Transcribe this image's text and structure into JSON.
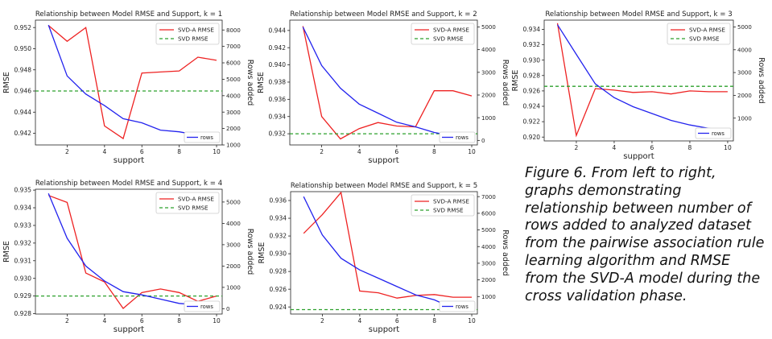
{
  "caption": "Figure 6. From left to right, graphs demonstrating relationship between number of rows added to analyzed dataset from the pairwise association rule learning algorithm and RMSE from the SVD-A model during the cross validation phase.",
  "colors": {
    "svd_a": "#ee2222",
    "svd": "#2ca02c",
    "rows": "#2222ee"
  },
  "chart_data": [
    {
      "type": "line",
      "title": "Relationship between Model RMSE and Support, k = 1",
      "xlabel": "support",
      "ylabel": "RMSE",
      "y2label": "Rows added",
      "xlim": [
        0.3,
        10.3
      ],
      "ylim": [
        0.9409,
        0.9527
      ],
      "y2lim": [
        1000,
        8600
      ],
      "xticks": [
        2,
        4,
        6,
        8,
        10
      ],
      "yticks": [
        0.942,
        0.944,
        0.946,
        0.948,
        0.95,
        0.952
      ],
      "y2ticks": [
        1000,
        2000,
        3000,
        4000,
        5000,
        6000,
        7000,
        8000
      ],
      "ydecimals": 3,
      "x": [
        1,
        2,
        3,
        4,
        5,
        6,
        7,
        8,
        9,
        10
      ],
      "series": [
        {
          "name": "SVD-A RMSE",
          "axis": "left",
          "style": "solid",
          "values": [
            0.9522,
            0.9507,
            0.952,
            0.9427,
            0.9415,
            0.9477,
            0.9478,
            0.9479,
            0.9492,
            0.9489
          ]
        },
        {
          "name": "SVD RMSE",
          "axis": "left",
          "style": "dashed",
          "values": [
            0.946,
            0.946,
            0.946,
            0.946,
            0.946,
            0.946,
            0.946,
            0.946,
            0.946,
            0.946
          ]
        },
        {
          "name": "rows",
          "axis": "right",
          "style": "solid",
          "values": [
            8300,
            5200,
            4100,
            3400,
            2600,
            2350,
            1900,
            1800,
            1600,
            1400
          ]
        }
      ],
      "legend_position": "top-right",
      "rows_legend_position": "bottom-right"
    },
    {
      "type": "line",
      "title": "Relationship between Model RMSE and Support, k = 2",
      "xlabel": "support",
      "ylabel": "RMSE",
      "y2label": "Rows added",
      "xlim": [
        0.3,
        10.3
      ],
      "ylim": [
        0.9307,
        0.9452
      ],
      "y2lim": [
        -200,
        5300
      ],
      "xticks": [
        2,
        4,
        6,
        8,
        10
      ],
      "yticks": [
        0.932,
        0.934,
        0.936,
        0.938,
        0.94,
        0.942,
        0.944
      ],
      "y2ticks": [
        0,
        1000,
        2000,
        3000,
        4000,
        5000
      ],
      "ydecimals": 3,
      "x": [
        1,
        2,
        3,
        4,
        5,
        6,
        7,
        8,
        9,
        10
      ],
      "series": [
        {
          "name": "SVD-A RMSE",
          "axis": "left",
          "style": "solid",
          "values": [
            0.9445,
            0.934,
            0.9314,
            0.9326,
            0.9333,
            0.9329,
            0.9328,
            0.937,
            0.937,
            0.9364
          ]
        },
        {
          "name": "SVD RMSE",
          "axis": "left",
          "style": "dashed",
          "values": [
            0.932,
            0.932,
            0.932,
            0.932,
            0.932,
            0.932,
            0.932,
            0.932,
            0.932,
            0.932
          ]
        },
        {
          "name": "rows",
          "axis": "right",
          "style": "solid",
          "values": [
            5000,
            3300,
            2300,
            1600,
            1200,
            800,
            600,
            350,
            200,
            100
          ]
        }
      ],
      "legend_position": "top-right",
      "rows_legend_position": "bottom-right"
    },
    {
      "type": "line",
      "title": "Relationship between Model RMSE and Support, k = 3",
      "xlabel": "support",
      "ylabel": "RMSE",
      "y2label": "Rows added",
      "xlim": [
        0.3,
        10.3
      ],
      "ylim": [
        0.9195,
        0.9352
      ],
      "y2lim": [
        0,
        5300
      ],
      "xticks": [
        2,
        4,
        6,
        8,
        10
      ],
      "yticks": [
        0.92,
        0.922,
        0.924,
        0.926,
        0.928,
        0.93,
        0.932,
        0.934
      ],
      "y2ticks": [
        1000,
        2000,
        3000,
        4000,
        5000
      ],
      "ydecimals": 3,
      "x": [
        1,
        2,
        3,
        4,
        5,
        6,
        7,
        8,
        9,
        10
      ],
      "series": [
        {
          "name": "SVD-A RMSE",
          "axis": "left",
          "style": "solid",
          "values": [
            0.9348,
            0.9202,
            0.9263,
            0.9261,
            0.9258,
            0.9259,
            0.9256,
            0.926,
            0.9259,
            0.9259
          ]
        },
        {
          "name": "SVD RMSE",
          "axis": "left",
          "style": "dashed",
          "values": [
            0.9266,
            0.9266,
            0.9266,
            0.9266,
            0.9266,
            0.9266,
            0.9266,
            0.9266,
            0.9266,
            0.9266
          ]
        },
        {
          "name": "rows",
          "axis": "right",
          "style": "solid",
          "values": [
            5100,
            3800,
            2500,
            1900,
            1500,
            1200,
            900,
            700,
            550,
            450
          ]
        }
      ],
      "legend_position": "top-right",
      "rows_legend_position": "bottom-right"
    },
    {
      "type": "line",
      "title": "Relationship between Model RMSE and Support, k = 4",
      "xlabel": "support",
      "ylabel": "RMSE",
      "y2label": "Rows added",
      "xlim": [
        0.3,
        10.3
      ],
      "ylim": [
        0.92798,
        0.93505
      ],
      "y2lim": [
        -250,
        5600
      ],
      "xticks": [
        2,
        4,
        6,
        8,
        10
      ],
      "yticks": [
        0.928,
        0.929,
        0.93,
        0.931,
        0.932,
        0.933,
        0.934,
        0.935
      ],
      "y2ticks": [
        0,
        1000,
        2000,
        3000,
        4000,
        5000
      ],
      "ydecimals": 3,
      "x": [
        1,
        2,
        3,
        4,
        5,
        6,
        7,
        8,
        9,
        10
      ],
      "series": [
        {
          "name": "SVD-A RMSE",
          "axis": "left",
          "style": "solid",
          "values": [
            0.9347,
            0.9343,
            0.9303,
            0.9298,
            0.9283,
            0.9292,
            0.9294,
            0.9292,
            0.9287,
            0.929
          ]
        },
        {
          "name": "SVD RMSE",
          "axis": "left",
          "style": "dashed",
          "values": [
            0.929,
            0.929,
            0.929,
            0.929,
            0.929,
            0.929,
            0.929,
            0.929,
            0.929,
            0.929
          ]
        },
        {
          "name": "rows",
          "axis": "right",
          "style": "solid",
          "values": [
            5400,
            3300,
            2000,
            1300,
            800,
            650,
            450,
            250,
            180,
            120
          ]
        }
      ],
      "legend_position": "top-right",
      "rows_legend_position": "bottom-right"
    },
    {
      "type": "line",
      "title": "Relationship between Model RMSE and Support, k = 5",
      "xlabel": "support",
      "ylabel": "RMSE",
      "y2label": "Rows added",
      "xlim": [
        0.3,
        10.3
      ],
      "ylim": [
        0.9232,
        0.937
      ],
      "y2lim": [
        -50,
        7300
      ],
      "xticks": [
        2,
        4,
        6,
        8,
        10
      ],
      "yticks": [
        0.924,
        0.926,
        0.928,
        0.93,
        0.932,
        0.934,
        0.936
      ],
      "y2ticks": [
        1000,
        2000,
        3000,
        4000,
        5000,
        6000,
        7000
      ],
      "ydecimals": 3,
      "x": [
        1,
        2,
        3,
        4,
        5,
        6,
        7,
        8,
        9,
        10
      ],
      "series": [
        {
          "name": "SVD-A RMSE",
          "axis": "left",
          "style": "solid",
          "values": [
            0.9323,
            0.9344,
            0.9369,
            0.9258,
            0.9256,
            0.925,
            0.9253,
            0.9254,
            0.9251,
            0.9251
          ]
        },
        {
          "name": "SVD RMSE",
          "axis": "left",
          "style": "dashed",
          "values": [
            0.9237,
            0.9237,
            0.9237,
            0.9237,
            0.9237,
            0.9237,
            0.9237,
            0.9237,
            0.9237,
            0.9237
          ]
        },
        {
          "name": "rows",
          "axis": "right",
          "style": "solid",
          "values": [
            7000,
            4700,
            3300,
            2600,
            2100,
            1600,
            1100,
            800,
            300,
            150
          ]
        }
      ],
      "legend_position": "top-right",
      "rows_legend_position": "bottom-right"
    }
  ]
}
